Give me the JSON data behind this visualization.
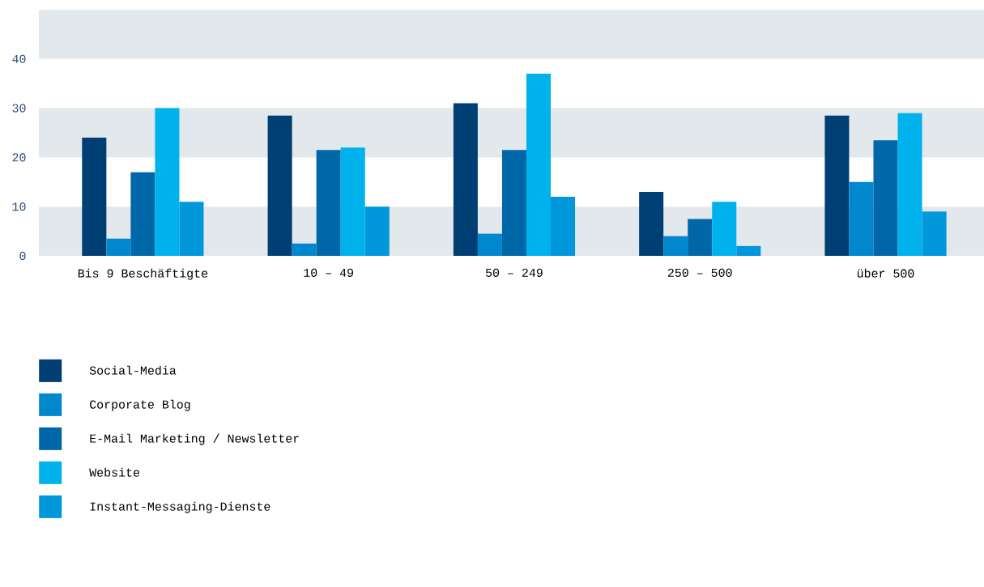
{
  "chart_data": {
    "type": "bar",
    "categories": [
      "Bis 9 Beschäftigte",
      "10 – 49",
      "50 – 249",
      "250 – 500",
      "über 500"
    ],
    "series": [
      {
        "name": "Social-Media",
        "color": "#003f74",
        "values": [
          24,
          28.5,
          31,
          13,
          28.5
        ]
      },
      {
        "name": "Corporate Blog",
        "color": "#0087cd",
        "values": [
          3.5,
          2.5,
          4.5,
          4,
          15
        ]
      },
      {
        "name": "E-Mail Marketing / Newsletter",
        "color": "#0067a9",
        "values": [
          17,
          21.5,
          21.5,
          7.5,
          23.5
        ]
      },
      {
        "name": "Website",
        "color": "#00b2ec",
        "values": [
          30,
          22,
          37,
          11,
          29
        ]
      },
      {
        "name": "Instant-Messaging-Dienste",
        "color": "#0098da",
        "values": [
          11,
          10,
          12,
          2,
          9
        ]
      }
    ],
    "ylim": [
      0,
      50
    ],
    "yticks": [
      0,
      10,
      20,
      30,
      40
    ],
    "bands": [
      {
        "axis": "y",
        "from": 0,
        "to": 10,
        "color": "#e3e8ec"
      },
      {
        "axis": "y",
        "from": 20,
        "to": 30,
        "color": "#e3e8ec"
      },
      {
        "axis": "y",
        "from": 40,
        "to": 50,
        "color": "#e3e8ec"
      }
    ],
    "legend": "bottom"
  }
}
